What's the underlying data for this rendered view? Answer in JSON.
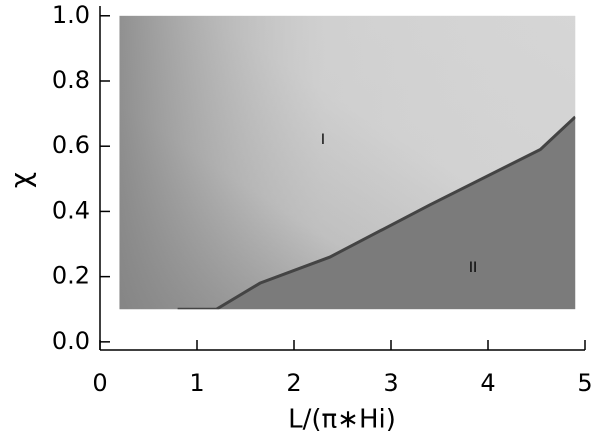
{
  "chart_data": {
    "type": "phase-map",
    "xlabel": "L/(π∗Hi)",
    "ylabel": "χ",
    "xlim": [
      0,
      5
    ],
    "ylim": [
      -0.025,
      1.03
    ],
    "xticks": [
      0,
      1,
      2,
      3,
      4,
      5
    ],
    "yticks": [
      {
        "value": 0,
        "label": "0.0"
      },
      0.2,
      0.4,
      0.6,
      0.8,
      {
        "value": 1,
        "label": "1.0"
      }
    ],
    "extent": [
      0.2,
      4.9,
      0.1,
      1.0
    ],
    "colors": {
      "region_I": "#d3d3d3",
      "region_II": "#7b7b7b",
      "boundary": "#444444"
    },
    "boundary": {
      "x": [
        0.8,
        1.2,
        1.65,
        2.37,
        3.4,
        4.54,
        4.9
      ],
      "y": [
        0.1,
        0.1,
        0.18,
        0.26,
        0.42,
        0.59,
        0.69
      ]
    },
    "annotations": [
      {
        "text": "I"
      },
      {
        "text": "II"
      }
    ]
  }
}
